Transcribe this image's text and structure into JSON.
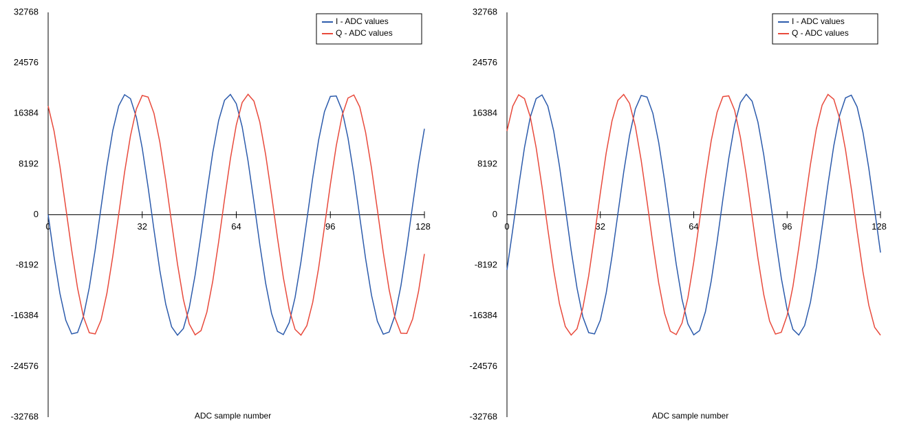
{
  "chart_data": [
    {
      "type": "line",
      "x_label": "ADC sample number",
      "x": [
        0,
        2,
        4,
        6,
        8,
        10,
        12,
        14,
        16,
        18,
        20,
        22,
        24,
        26,
        28,
        30,
        32,
        34,
        36,
        38,
        40,
        42,
        44,
        46,
        48,
        50,
        52,
        54,
        56,
        58,
        60,
        62,
        64,
        66,
        68,
        70,
        72,
        74,
        76,
        78,
        80,
        82,
        84,
        86,
        88,
        90,
        92,
        94,
        96,
        98,
        100,
        102,
        104,
        106,
        108,
        110,
        112,
        114,
        116,
        118,
        120,
        122,
        124,
        126,
        128
      ],
      "series": [
        {
          "name": "I - ADC values",
          "color": "#2b5aab",
          "values": [
            0,
            -6790,
            -12730,
            -17080,
            -19290,
            -19070,
            -16460,
            -11780,
            -5660,
            1210,
            7920,
            13670,
            17630,
            19440,
            18800,
            15800,
            10800,
            4470,
            -2440,
            -9030,
            -14490,
            -18140,
            -19500,
            -18430,
            -15050,
            -9750,
            -3260,
            3630,
            10080,
            15270,
            18540,
            19480,
            17980,
            14240,
            8700,
            2070,
            -4820,
            -11120,
            -15990,
            -18880,
            -19400,
            -17470,
            -13380,
            -7610,
            -860,
            5990,
            12070,
            16690,
            19150,
            19230,
            16890,
            12440,
            6450,
            -370,
            -7140,
            -13030,
            -17260,
            -19340,
            -18990,
            -16260,
            -11510,
            -5300,
            1580,
            8250,
            13920
          ]
        },
        {
          "name": "Q - ADC values",
          "color": "#e8493b",
          "values": [
            17600,
            13570,
            7860,
            1130,
            -5710,
            -11870,
            -16520,
            -19110,
            -19290,
            -17050,
            -12680,
            -6680,
            50,
            6900,
            12770,
            17120,
            19310,
            19050,
            16420,
            11740,
            5570,
            -1300,
            -8000,
            -13690,
            -17670,
            -19440,
            -18760,
            -15750,
            -10740,
            -4390,
            2510,
            9080,
            14530,
            18170,
            19500,
            18400,
            15000,
            9690,
            3200,
            -3710,
            -10150,
            -15310,
            -18570,
            -19490,
            -17960,
            -14190,
            -8650,
            -1950,
            4900,
            11140,
            16060,
            18900,
            19390,
            17450,
            13310,
            7520,
            790,
            -6090,
            -12150,
            -16690,
            -19180,
            -19220,
            -16870,
            -12400,
            -6340
          ]
        }
      ],
      "xlim": [
        0,
        128
      ],
      "xticks": [
        0,
        32,
        64,
        96,
        128
      ],
      "ylim": [
        -32768,
        32768
      ],
      "yticks": [
        -32768,
        -24576,
        -16384,
        -8192,
        0,
        8192,
        16384,
        24576,
        32768
      ],
      "legend": "top-right",
      "grid": false
    },
    {
      "type": "line",
      "x_label": "ADC sample number",
      "x": [
        0,
        2,
        4,
        6,
        8,
        10,
        12,
        14,
        16,
        18,
        20,
        22,
        24,
        26,
        28,
        30,
        32,
        34,
        36,
        38,
        40,
        42,
        44,
        46,
        48,
        50,
        52,
        54,
        56,
        58,
        60,
        62,
        64,
        66,
        68,
        70,
        72,
        74,
        76,
        78,
        80,
        82,
        84,
        86,
        88,
        90,
        92,
        94,
        96,
        98,
        100,
        102,
        104,
        106,
        108,
        110,
        112,
        114,
        116,
        118,
        120,
        122,
        124,
        126,
        128
      ],
      "series": [
        {
          "name": "I - ADC values",
          "color": "#2b5aab",
          "values": [
            -8930,
            -2340,
            4560,
            10880,
            15830,
            18800,
            19400,
            17590,
            13570,
            7840,
            1130,
            -5770,
            -11860,
            -16540,
            -19090,
            -19290,
            -17060,
            -12680,
            -6690,
            120,
            6900,
            12830,
            17140,
            19310,
            19050,
            16420,
            11700,
            5560,
            -1330,
            -8010,
            -13710,
            -17670,
            -19440,
            -18760,
            -15720,
            -10710,
            -4370,
            2550,
            9110,
            14550,
            18170,
            19500,
            18390,
            15000,
            9690,
            3180,
            -3710,
            -10220,
            -15330,
            -18560,
            -19480,
            -17940,
            -14160,
            -8600,
            -1970,
            4930,
            11190,
            16070,
            18920,
            19360,
            17450,
            13320,
            7510,
            760,
            -6120
          ]
        },
        {
          "name": "Q - ADC values",
          "color": "#e8493b",
          "values": [
            13570,
            17590,
            19420,
            18800,
            15830,
            10860,
            4540,
            -2360,
            -8930,
            -14430,
            -18100,
            -19480,
            -18470,
            -15090,
            -9890,
            -3370,
            3550,
            10000,
            15210,
            18510,
            19480,
            18040,
            14290,
            8790,
            2160,
            -4760,
            -11040,
            -15950,
            -18860,
            -19400,
            -17530,
            -13440,
            -7660,
            -940,
            5910,
            12010,
            16590,
            19130,
            19250,
            16950,
            12520,
            6530,
            -270,
            -7040,
            -12930,
            -17220,
            -19320,
            -19030,
            -16320,
            -11600,
            -5340,
            1520,
            8170,
            13850,
            17750,
            19480,
            18700,
            15600,
            10570,
            4210,
            -2690,
            -9260,
            -14660,
            -18230,
            -19500
          ]
        }
      ],
      "xlim": [
        0,
        128
      ],
      "xticks": [
        0,
        32,
        64,
        96,
        128
      ],
      "ylim": [
        -32768,
        32768
      ],
      "yticks": [
        -32768,
        -24576,
        -16384,
        -8192,
        0,
        8192,
        16384,
        24576,
        32768
      ],
      "legend": "top-right",
      "grid": false
    }
  ]
}
